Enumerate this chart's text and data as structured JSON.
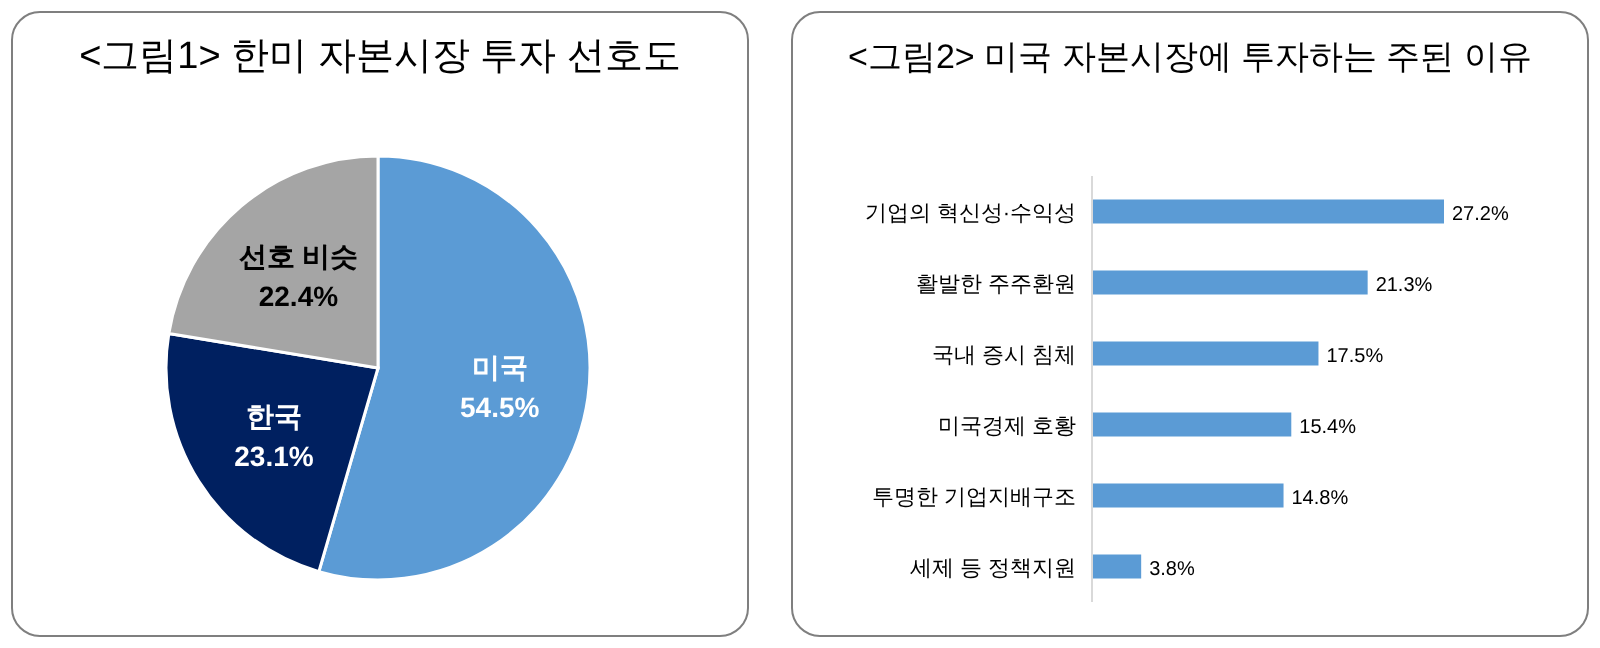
{
  "chart_data": [
    {
      "type": "pie",
      "title": "<그림1> 한미 자본시장 투자 선호도",
      "categories": [
        "미국",
        "한국",
        "선호 비슷"
      ],
      "values": [
        54.5,
        23.1,
        22.4
      ],
      "colors": [
        "#5b9bd5",
        "#002060",
        "#a5a5a5"
      ],
      "value_labels": [
        "54.5%",
        "23.1%",
        "22.4%"
      ]
    },
    {
      "type": "bar",
      "orientation": "horizontal",
      "title": "<그림2> 미국 자본시장에 투자하는 주된 이유",
      "categories": [
        "기업의 혁신성·수익성",
        "활발한 주주환원",
        "국내 증시 침체",
        "미국경제 호황",
        "투명한 기업지배구조",
        "세제 등 정책지원"
      ],
      "series": [
        {
          "color": "#5b9bd5",
          "values": [
            27.2,
            21.3,
            17.5,
            15.4,
            14.8,
            3.8
          ],
          "value_labels": [
            "27.2%",
            "21.3%",
            "17.5%",
            "15.4%",
            "14.8%",
            "3.8%"
          ]
        }
      ]
    }
  ]
}
